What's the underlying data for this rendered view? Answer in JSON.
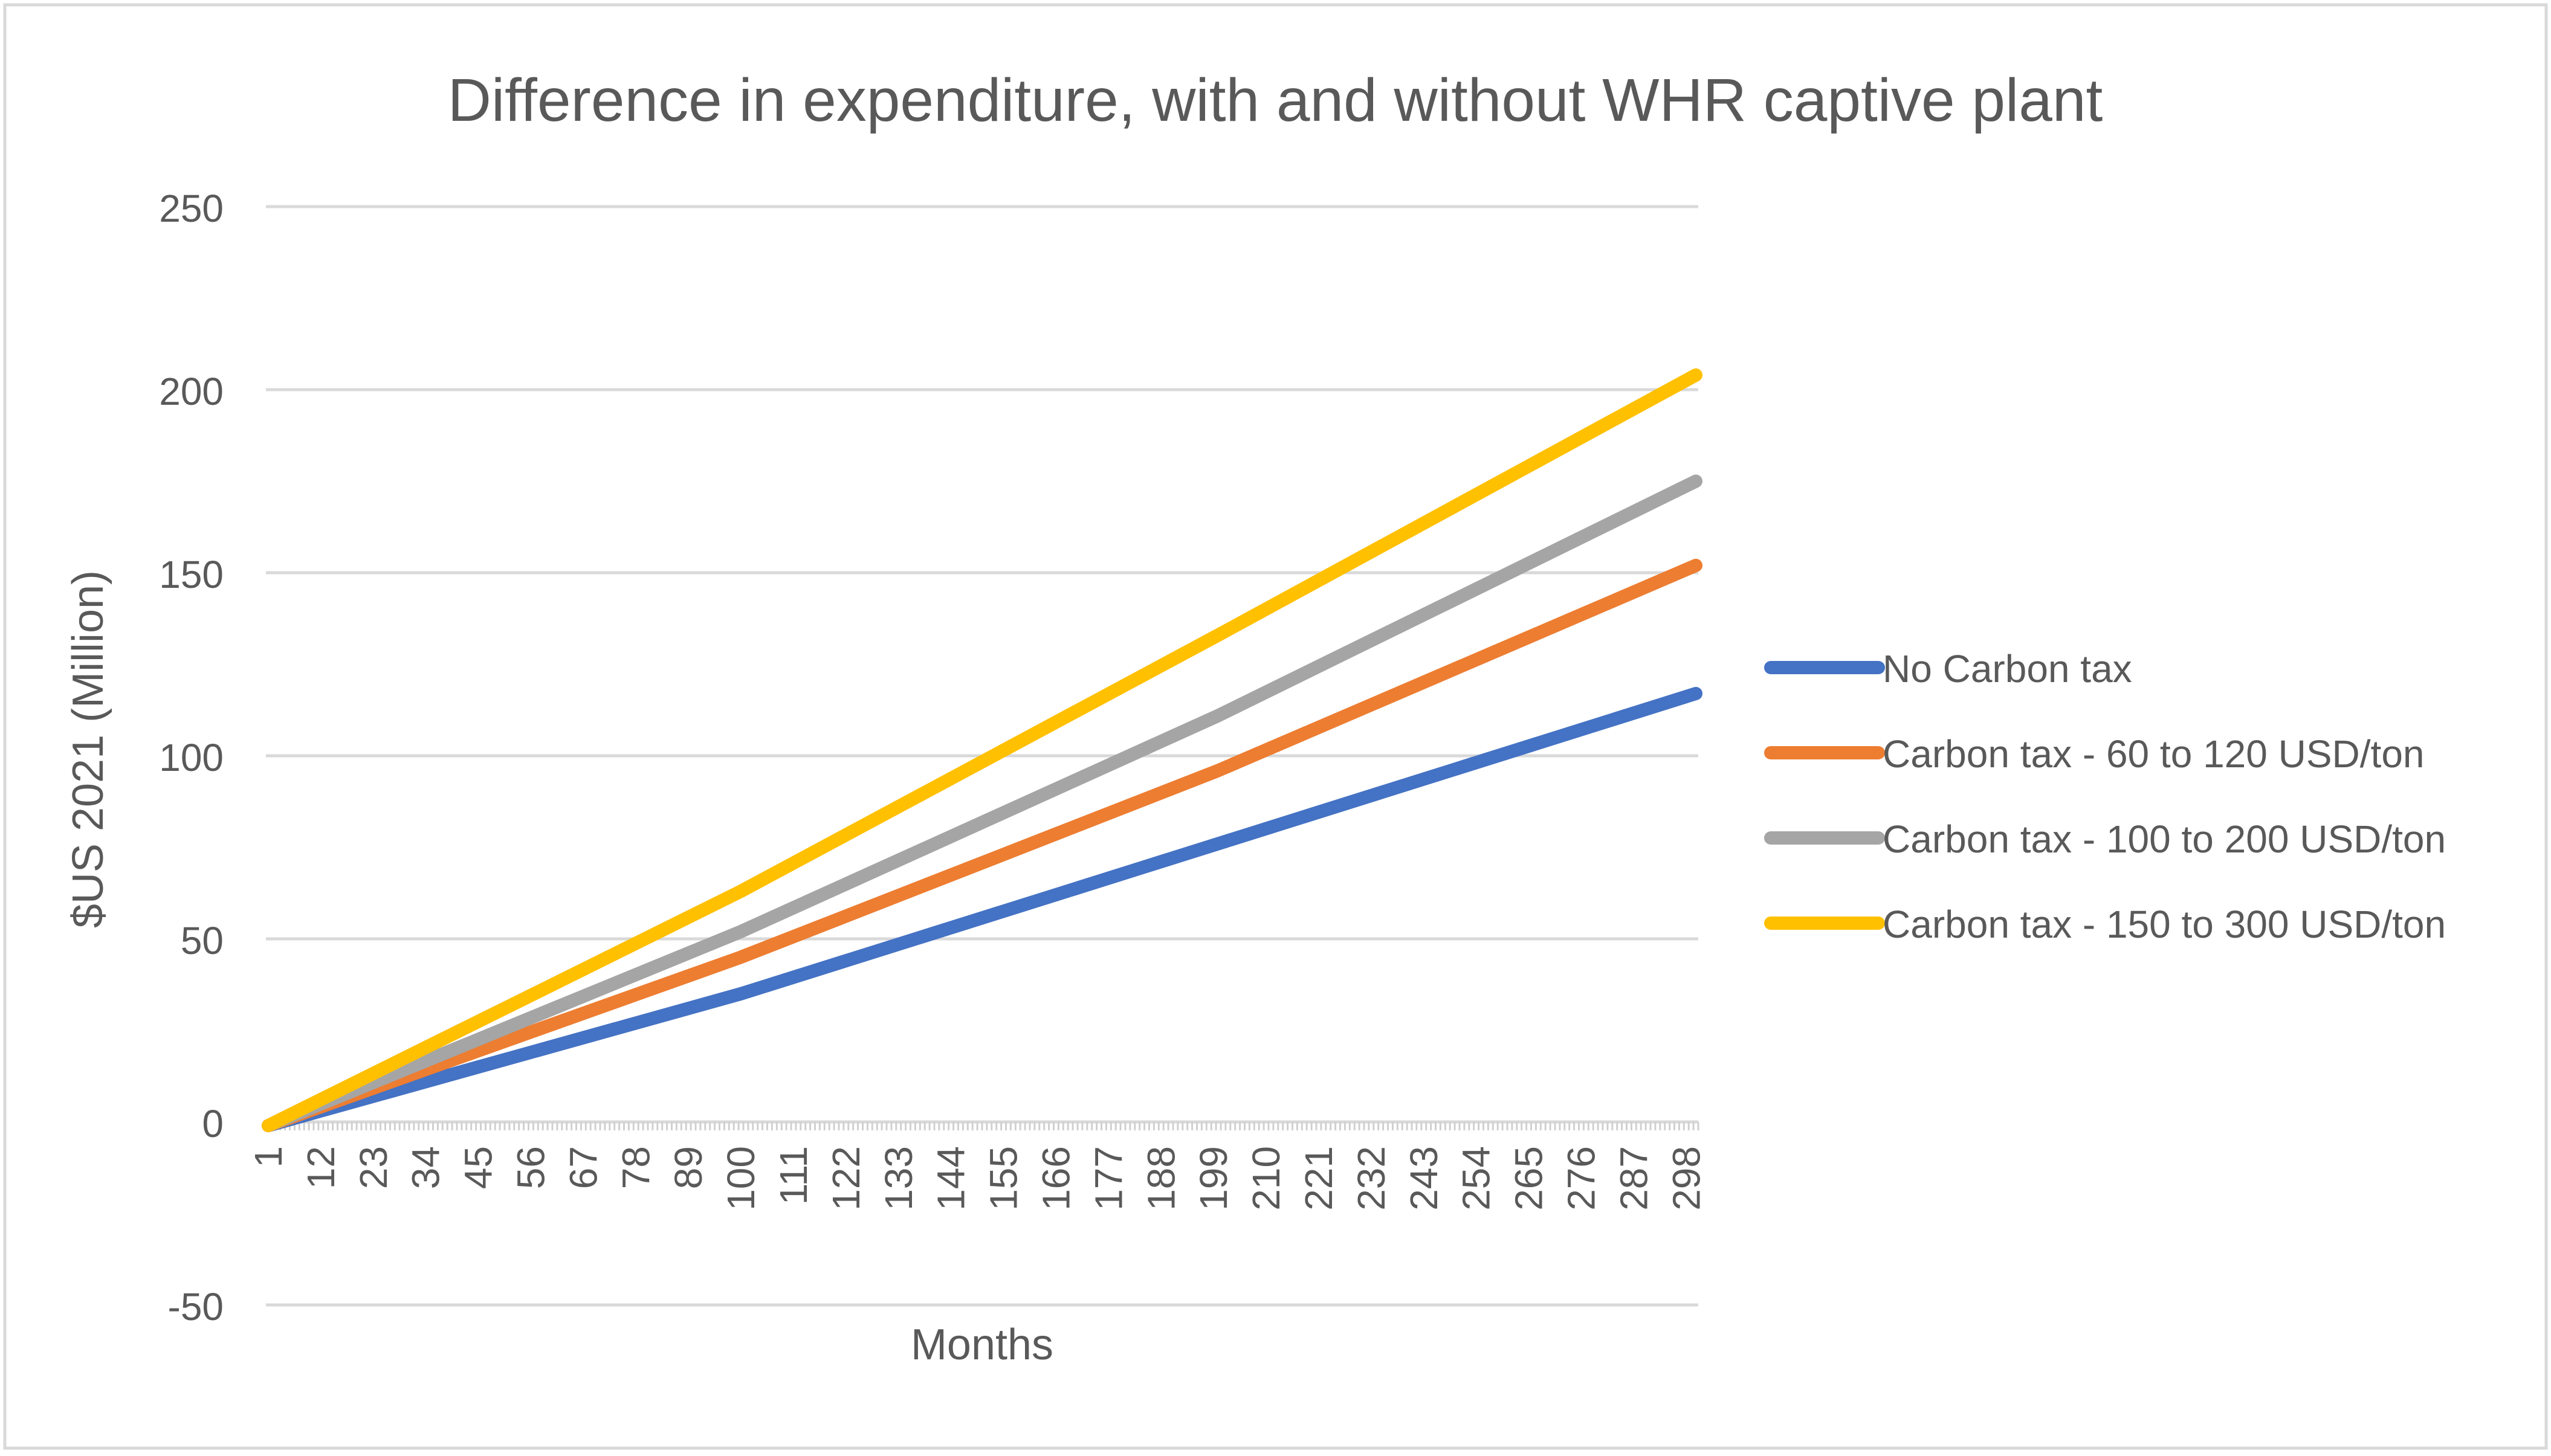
{
  "chart_data": {
    "type": "line",
    "title": "Difference in expenditure, with and without WHR captive plant",
    "xlabel": "Months",
    "ylabel": "$US 2021 (Million)",
    "ylim": [
      -50,
      250
    ],
    "yticks": [
      -50,
      0,
      50,
      100,
      150,
      200,
      250
    ],
    "grid": true,
    "legend_position": "right",
    "x_range": [
      1,
      300
    ],
    "x_tick_labels": [
      "1",
      "12",
      "23",
      "34",
      "45",
      "56",
      "67",
      "78",
      "89",
      "100",
      "111",
      "122",
      "133",
      "144",
      "155",
      "166",
      "177",
      "188",
      "199",
      "210",
      "221",
      "232",
      "243",
      "254",
      "265",
      "276",
      "287",
      "298"
    ],
    "series": [
      {
        "name": "No Carbon tax",
        "color": "#4472C4",
        "x": [
          1,
          100,
          200,
          300
        ],
        "y": [
          -1,
          35,
          76,
          117
        ]
      },
      {
        "name": "Carbon tax - 60 to 120 USD/ton",
        "color": "#ED7D31",
        "x": [
          1,
          100,
          200,
          300
        ],
        "y": [
          -1,
          45,
          96,
          152
        ]
      },
      {
        "name": "Carbon tax - 100 to 200 USD/ton",
        "color": "#A5A5A5",
        "x": [
          1,
          100,
          200,
          300
        ],
        "y": [
          -1,
          52,
          111,
          175
        ]
      },
      {
        "name": "Carbon tax - 150 to 300 USD/ton",
        "color": "#FFC000",
        "x": [
          1,
          100,
          200,
          300
        ],
        "y": [
          -1,
          63,
          133,
          204
        ]
      }
    ]
  }
}
